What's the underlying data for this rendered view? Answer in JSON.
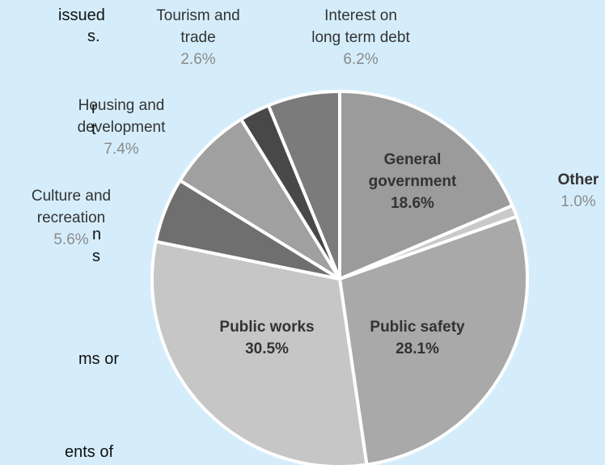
{
  "chart_data": {
    "type": "pie",
    "categories": [
      "General government",
      "Other",
      "Public safety",
      "Public works",
      "Culture and recreation",
      "Housing and development",
      "Tourism and trade",
      "Interest on long term debt"
    ],
    "values": [
      18.6,
      1.0,
      28.1,
      30.5,
      5.6,
      7.4,
      2.6,
      6.2
    ],
    "value_labels": [
      "18.6%",
      "1.0%",
      "28.1%",
      "30.5%",
      "5.6%",
      "7.4%",
      "2.6%",
      "6.2%"
    ],
    "colors": [
      "#9b9b9b",
      "#c9c9c9",
      "#a9a9a9",
      "#c6c6c6",
      "#6f6f6f",
      "#a0a0a0",
      "#484848",
      "#7b7b7b"
    ]
  },
  "side_text": [
    "issued",
    "s.",
    "r",
    "t",
    "n",
    "s",
    "ms or",
    "ents of"
  ]
}
